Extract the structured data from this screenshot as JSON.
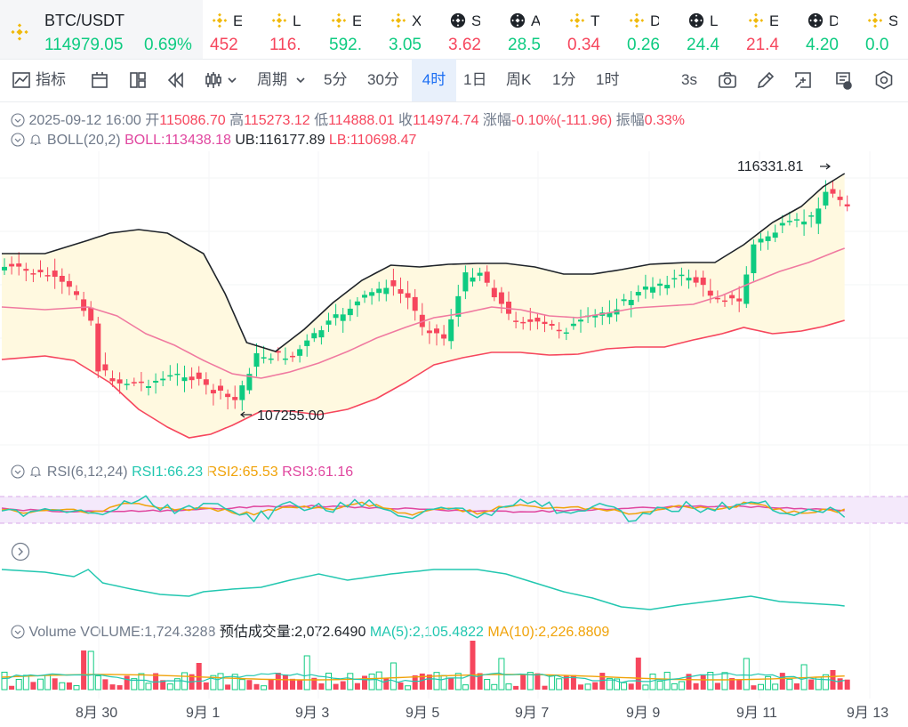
{
  "main_ticker": {
    "pair": "BTC/USDT",
    "price": "114979.05",
    "change": "0.69%"
  },
  "tickers": [
    {
      "sym": "E",
      "value": "452",
      "dir": "dn",
      "icon": "bnb-icon"
    },
    {
      "sym": "L",
      "value": "116.",
      "dir": "dn",
      "icon": "bnb-icon"
    },
    {
      "sym": "E",
      "value": "592.",
      "dir": "up",
      "icon": "bnb-icon"
    },
    {
      "sym": "X",
      "value": "3.05",
      "dir": "up",
      "icon": "bnb-icon"
    },
    {
      "sym": "S",
      "value": "3.62",
      "dir": "dn",
      "icon": "binance-alpha-icon"
    },
    {
      "sym": "A",
      "value": "28.5",
      "dir": "up",
      "icon": "binance-alpha-icon"
    },
    {
      "sym": "T",
      "value": "0.34",
      "dir": "dn",
      "icon": "bnb-icon"
    },
    {
      "sym": "D",
      "value": "0.26",
      "dir": "up",
      "icon": "bnb-icon"
    },
    {
      "sym": "L",
      "value": "24.4",
      "dir": "up",
      "icon": "binance-alpha-icon"
    },
    {
      "sym": "E",
      "value": "21.4",
      "dir": "dn",
      "icon": "bnb-icon"
    },
    {
      "sym": "D",
      "value": "4.20",
      "dir": "up",
      "icon": "binance-alpha-icon"
    },
    {
      "sym": "S",
      "value": "0.0",
      "dir": "up",
      "icon": "bnb-icon"
    }
  ],
  "toolbar": {
    "indicators": "指标",
    "period": "周期",
    "intervals": [
      "5分",
      "30分",
      "4时",
      "1日",
      "周K",
      "1分",
      "1时"
    ],
    "active_interval": "4时",
    "refresh": "3s"
  },
  "ohlc": {
    "date": "2025-09-12 16:00",
    "open_label": "开",
    "open": "115086.70",
    "high_label": "高",
    "high": "115273.12",
    "low_label": "低",
    "low": "114888.01",
    "close_label": "收",
    "close": "114974.74",
    "change_label": "涨幅",
    "change": "-0.10%(-111.96)",
    "amp_label": "振幅",
    "amp": "0.33%"
  },
  "boll": {
    "name": "BOLL(20,2)",
    "boll": "BOLL:113438.18",
    "ub": "UB:116177.89",
    "lb": "LB:110698.47"
  },
  "markers": {
    "max": "116331.81",
    "min": "107255.00"
  },
  "rsi": {
    "name": "RSI(6,12,24)",
    "rsi1": "RSI1:66.23",
    "rsi2": "RSI2:65.53",
    "rsi3": "RSI3:61.16"
  },
  "volume": {
    "name": "Volume",
    "volume": "VOLUME:1,724.3288",
    "est": "预估成交量:2,072.6490",
    "ma5": "MA(5):2,105.4822",
    "ma10": "MA(10):2,226.8809"
  },
  "x_labels": [
    "8月 30",
    "9月 1",
    "9月 3",
    "9月 5",
    "9月 7",
    "9月 9",
    "9月 11",
    "9月 13"
  ],
  "colors": {
    "up": "#0ecb81",
    "down": "#f6465d",
    "accent": "#1b6ef3",
    "boll_mid": "#e0469f"
  }
}
